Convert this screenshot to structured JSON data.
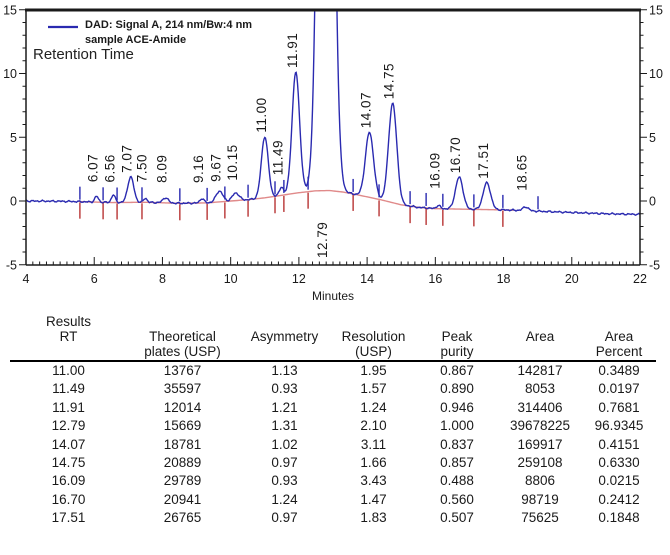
{
  "chart_data": {
    "type": "line",
    "kind": "chromatogram",
    "legend": {
      "series_line1": "DAD: Signal A, 214 nm/Bw:4 nm",
      "series_line2": "sample ACE-Amide",
      "annotation": "Retention Time"
    },
    "x_axis": {
      "label": "Minutes",
      "min": 4,
      "max": 22,
      "major_step": 2,
      "minor_step": 0.2,
      "tick_labels": [
        "4",
        "6",
        "8",
        "10",
        "12",
        "14",
        "16",
        "18",
        "20",
        "22"
      ]
    },
    "y_axis": {
      "min": -5,
      "max": 15,
      "major_step": 5,
      "minor_step": 1,
      "mirrored_right": true,
      "tick_labels": [
        "-5",
        "0",
        "5",
        "10",
        "15"
      ]
    },
    "colors": {
      "signal": "#2a2ab0",
      "baseline": "#e08a8a",
      "marker_red": "#b83434",
      "axis": "#1a1a1a",
      "text": "#1a1a1a"
    },
    "peaks": [
      {
        "rt": 6.07,
        "label": "6.07",
        "height": 0.45,
        "sigma": 0.055
      },
      {
        "rt": 6.56,
        "label": "6.56",
        "height": 0.6,
        "sigma": 0.055
      },
      {
        "rt": 7.07,
        "label": "7.07",
        "height": 2.0,
        "sigma": 0.09
      },
      {
        "rt": 7.5,
        "label": "7.50",
        "height": 0.32,
        "sigma": 0.05
      },
      {
        "rt": 8.09,
        "label": "8.09",
        "height": 0.4,
        "sigma": 0.08
      },
      {
        "rt": 9.16,
        "label": "9.16",
        "height": 0.35,
        "sigma": 0.06
      },
      {
        "rt": 9.67,
        "label": "9.67",
        "height": 0.85,
        "sigma": 0.1
      },
      {
        "rt": 10.15,
        "label": "10.15",
        "height": 0.6,
        "sigma": 0.1
      },
      {
        "rt": 11.0,
        "label": "11.00",
        "height": 4.8,
        "sigma": 0.1
      },
      {
        "rt": 11.49,
        "label": "11.49",
        "height": 0.65,
        "sigma": 0.06
      },
      {
        "rt": 11.91,
        "label": "11.91",
        "height": 9.5,
        "sigma": 0.11
      },
      {
        "rt": 12.79,
        "label": "12.79",
        "height": 90.0,
        "sigma": 0.17,
        "label_pos": "below"
      },
      {
        "rt": 14.07,
        "label": "14.07",
        "height": 5.1,
        "sigma": 0.12
      },
      {
        "rt": 14.75,
        "label": "14.75",
        "height": 7.8,
        "sigma": 0.12
      },
      {
        "rt": 16.09,
        "label": "16.09",
        "height": 0.25,
        "sigma": 0.06
      },
      {
        "rt": 16.7,
        "label": "16.70",
        "height": 2.5,
        "sigma": 0.11
      },
      {
        "rt": 17.51,
        "label": "17.51",
        "height": 2.1,
        "sigma": 0.11
      },
      {
        "rt": 18.65,
        "label": "18.65",
        "height": 0.3,
        "sigma": 0.08
      }
    ],
    "baseline_anchors": [
      [
        4,
        0
      ],
      [
        5,
        -0.02
      ],
      [
        5.55,
        -0.05
      ],
      [
        6.5,
        -0.12
      ],
      [
        7.5,
        -0.1
      ],
      [
        8.5,
        -0.18
      ],
      [
        9.3,
        -0.15
      ],
      [
        10,
        0
      ],
      [
        10.5,
        0.1
      ],
      [
        11,
        0.25
      ],
      [
        11.5,
        0.45
      ],
      [
        12,
        0.65
      ],
      [
        12.5,
        0.8
      ],
      [
        12.9,
        0.82
      ],
      [
        13.3,
        0.7
      ],
      [
        13.6,
        0.55
      ],
      [
        14.4,
        0.1
      ],
      [
        15,
        -0.3
      ],
      [
        15.5,
        -0.5
      ],
      [
        16,
        -0.6
      ],
      [
        17,
        -0.65
      ],
      [
        18.05,
        -0.7
      ],
      [
        18.3,
        -0.72
      ],
      [
        19,
        -0.8
      ],
      [
        20,
        -0.9
      ],
      [
        21,
        -1.0
      ],
      [
        22,
        -1.05
      ]
    ],
    "baseline_visible_range": [
      5.55,
      18.3
    ],
    "integration_markers": [
      {
        "t": 5.58
      },
      {
        "t": 6.26
      },
      {
        "t": 6.67
      },
      {
        "t": 7.4
      },
      {
        "t": 8.51
      },
      {
        "t": 9.31
      },
      {
        "t": 9.83
      },
      {
        "t": 10.51
      },
      {
        "t": 11.3
      },
      {
        "t": 11.56
      },
      {
        "t": 12.27
      },
      {
        "t": 13.59
      },
      {
        "t": 14.35
      },
      {
        "t": 15.26
      },
      {
        "t": 15.73
      },
      {
        "t": 16.22
      },
      {
        "t": 17.13
      },
      {
        "t": 17.98
      },
      {
        "t": 19.01,
        "red": false
      }
    ]
  },
  "results_table": {
    "title": "Results",
    "columns": [
      {
        "lines": [
          "Results",
          "RT",
          ""
        ]
      },
      {
        "lines": [
          "",
          "Theoretical",
          "plates (USP)"
        ]
      },
      {
        "lines": [
          "",
          "Asymmetry",
          ""
        ]
      },
      {
        "lines": [
          "",
          "Resolution",
          "(USP)"
        ]
      },
      {
        "lines": [
          "",
          "Peak",
          "purity"
        ]
      },
      {
        "lines": [
          "",
          "Area",
          ""
        ]
      },
      {
        "lines": [
          "",
          "Area",
          "Percent"
        ]
      }
    ],
    "rows": [
      [
        "11.00",
        "13767",
        "1.13",
        "1.95",
        "0.867",
        "142817",
        "0.3489"
      ],
      [
        "11.49",
        "35597",
        "0.93",
        "1.57",
        "0.890",
        "8053",
        "0.0197"
      ],
      [
        "11.91",
        "12014",
        "1.21",
        "1.24",
        "0.946",
        "314406",
        "0.7681"
      ],
      [
        "12.79",
        "15669",
        "1.31",
        "2.10",
        "1.000",
        "39678225",
        "96.9345"
      ],
      [
        "14.07",
        "18781",
        "1.02",
        "3.11",
        "0.837",
        "169917",
        "0.4151"
      ],
      [
        "14.75",
        "20889",
        "0.97",
        "1.66",
        "0.857",
        "259108",
        "0.6330"
      ],
      [
        "16.09",
        "29789",
        "0.93",
        "3.43",
        "0.488",
        "8806",
        "0.0215"
      ],
      [
        "16.70",
        "20941",
        "1.24",
        "1.47",
        "0.560",
        "98719",
        "0.2412"
      ],
      [
        "17.51",
        "26765",
        "0.97",
        "1.83",
        "0.507",
        "75625",
        "0.1848"
      ]
    ]
  }
}
